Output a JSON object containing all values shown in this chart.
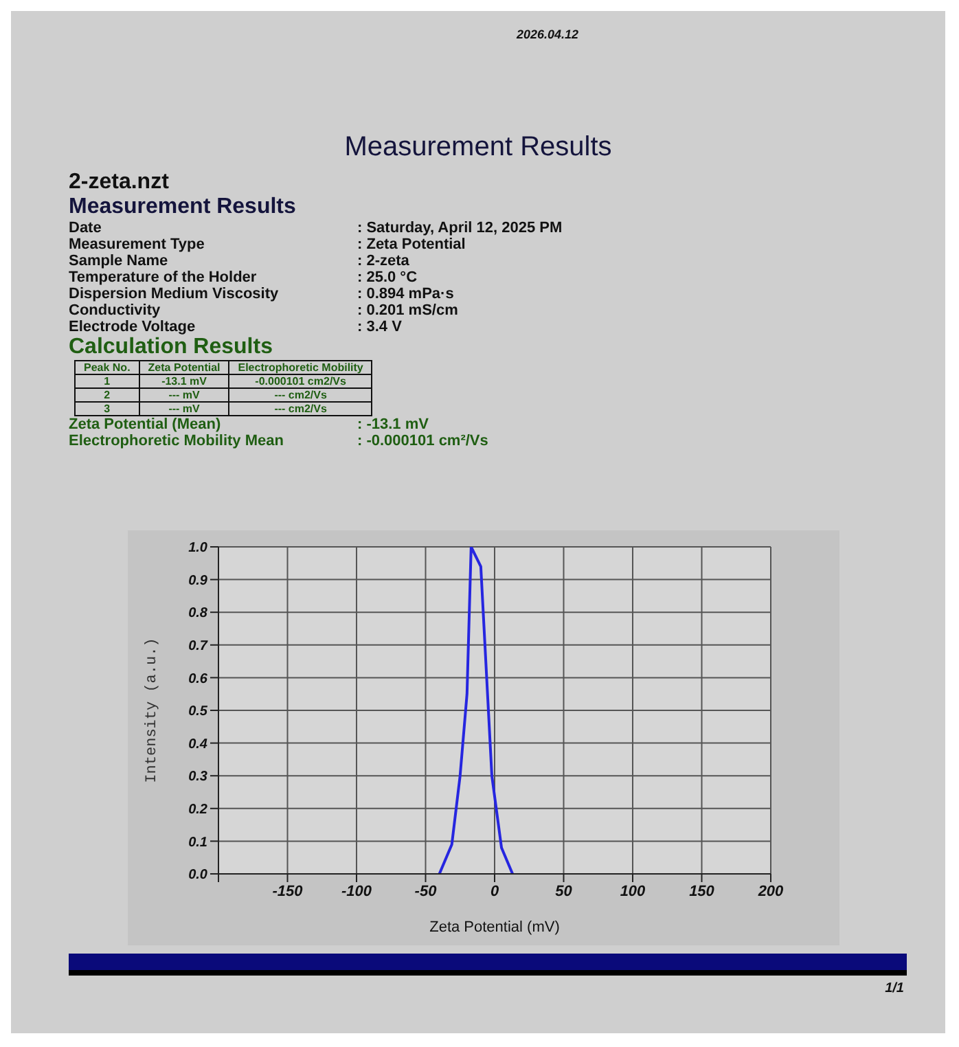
{
  "chart_data": {
    "type": "line",
    "title": "Measurement Results",
    "xlabel": "Zeta Potential (mV)",
    "ylabel": "Intensity (a.u.)",
    "annotations": [
      "2026.04.12",
      "2-zeta.nzt",
      "Measurement Results",
      "Date",
      ": Saturday, April 12, 2025 PM",
      "Measurement Type",
      ": Zeta Potential",
      "Sample Name",
      ": 2-zeta",
      "Temperature of the Holder",
      ": 25.0 °C",
      "Dispersion Medium Viscosity",
      ": 0.894 mPa·s",
      "Conductivity",
      ": 0.201 mS/cm",
      "Electrode Voltage",
      ": 3.4 V",
      "Calculation Results",
      "Peak No.",
      "Zeta Potential",
      "Electrophoretic Mobility",
      "1",
      "-13.1 mV",
      "-0.000101 cm2/Vs",
      "2",
      "--- mV",
      "--- cm2/Vs",
      "3",
      "--- mV",
      "--- cm2/Vs",
      "Zeta Potential (Mean)",
      ": -13.1 mV",
      "Electrophoretic Mobility Mean",
      ": -0.000101 cm²/Vs",
      "1/1"
    ],
    "x": [
      -40,
      -31,
      -25,
      -20,
      -17,
      -10,
      -2,
      5,
      13
    ],
    "series": [
      {
        "color": "#2626e0",
        "values": [
          0,
          0.09,
          0.3,
          0.55,
          1,
          0.94,
          0.3,
          0.08,
          0
        ]
      }
    ],
    "xlim": [
      -200,
      200
    ],
    "xticks": [
      {
        "value": -200,
        "label": null
      },
      -150,
      -100,
      -50,
      0,
      50,
      100,
      150,
      200
    ],
    "ylim": [
      0,
      1
    ],
    "yticks": [
      "0.0",
      0.1,
      0.2,
      0.3,
      0.4,
      0.5,
      0.6,
      0.7,
      0.8,
      0.9,
      "1.0"
    ],
    "grid": true,
    "legend": false,
    "marker": "none",
    "line_style": "solid"
  }
}
